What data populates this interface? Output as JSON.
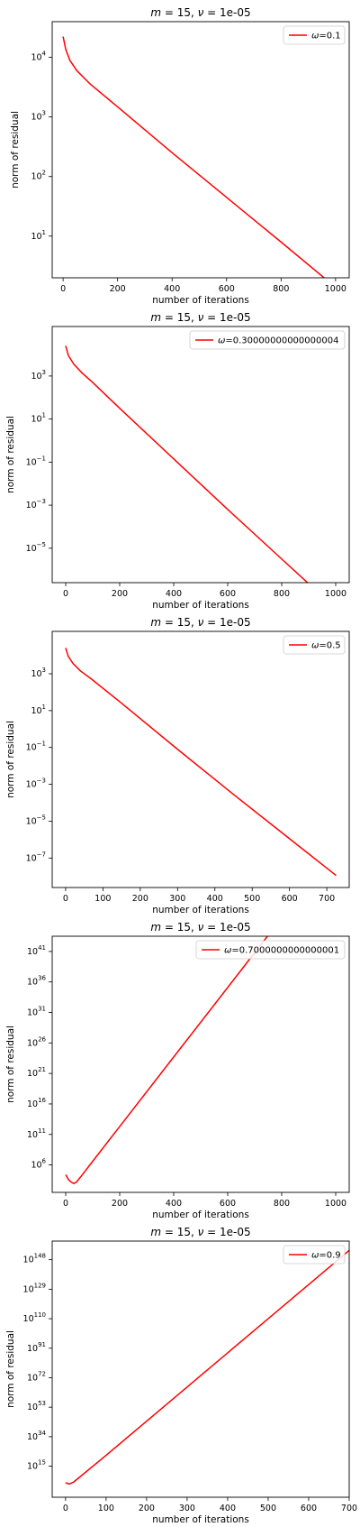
{
  "chart_data": [
    {
      "type": "line",
      "title": "m =  15, ν =  1e-05",
      "title_parts": {
        "m": "m",
        "eq1": " =  15, ",
        "nu": "ν",
        "eq2": " =  1e-05"
      },
      "xlabel": "number of iterations",
      "ylabel": "norm of residual",
      "yscale": "log",
      "xlim": [
        -40,
        1050
      ],
      "ylim_log10": [
        0.3,
        4.6
      ],
      "xticks": [
        0,
        200,
        400,
        600,
        800,
        1000
      ],
      "yticks": [
        {
          "base": "10",
          "exp": "1",
          "log": 1
        },
        {
          "base": "10",
          "exp": "2",
          "log": 2
        },
        {
          "base": "10",
          "exp": "3",
          "log": 3
        },
        {
          "base": "10",
          "exp": "4",
          "log": 4
        }
      ],
      "legend": {
        "position": "upper right",
        "prefix": "ω",
        "label": "=0.1"
      },
      "color": "#ff0000",
      "series": [
        {
          "name": "ω=0.1",
          "points": [
            [
              0,
              4.35
            ],
            [
              10,
              4.13
            ],
            [
              25,
              3.95
            ],
            [
              50,
              3.78
            ],
            [
              100,
              3.55
            ],
            [
              200,
              3.17
            ],
            [
              400,
              2.4
            ],
            [
              600,
              1.65
            ],
            [
              800,
              0.9
            ],
            [
              1000,
              0.14
            ]
          ]
        }
      ]
    },
    {
      "type": "line",
      "title": "m =  15, ν =  1e-05",
      "title_parts": {
        "m": "m",
        "eq1": " =  15, ",
        "nu": "ν",
        "eq2": " =  1e-05"
      },
      "xlabel": "number of iterations",
      "ylabel": "norm of residual",
      "yscale": "log",
      "xlim": [
        -50,
        1050
      ],
      "ylim_log10": [
        -6.6,
        5.3
      ],
      "xticks": [
        0,
        200,
        400,
        600,
        800,
        1000
      ],
      "yticks": [
        {
          "base": "10",
          "exp": "−5",
          "log": -5
        },
        {
          "base": "10",
          "exp": "−3",
          "log": -3
        },
        {
          "base": "10",
          "exp": "−1",
          "log": -1
        },
        {
          "base": "10",
          "exp": "1",
          "log": 1
        },
        {
          "base": "10",
          "exp": "3",
          "log": 3
        }
      ],
      "legend": {
        "position": "upper right",
        "prefix": "ω",
        "label": "=0.30000000000000004"
      },
      "color": "#ff0000",
      "series": [
        {
          "name": "ω=0.30000000000000004",
          "points": [
            [
              0,
              4.4
            ],
            [
              10,
              3.95
            ],
            [
              30,
              3.55
            ],
            [
              60,
              3.15
            ],
            [
              100,
              2.7
            ],
            [
              200,
              1.5
            ],
            [
              400,
              -0.85
            ],
            [
              600,
              -3.2
            ],
            [
              800,
              -5.5
            ],
            [
              1000,
              -7.8
            ]
          ]
        }
      ]
    },
    {
      "type": "line",
      "title": "m =  15, ν =  1e-05",
      "title_parts": {
        "m": "m",
        "eq1": " =  15, ",
        "nu": "ν",
        "eq2": " =  1e-05"
      },
      "xlabel": "number of iterations",
      "ylabel": "norm of residual",
      "yscale": "log",
      "xlim": [
        -36,
        760
      ],
      "ylim_log10": [
        -8.6,
        5.3
      ],
      "xticks": [
        0,
        100,
        200,
        300,
        400,
        500,
        600,
        700
      ],
      "yticks": [
        {
          "base": "10",
          "exp": "−7",
          "log": -7
        },
        {
          "base": "10",
          "exp": "−5",
          "log": -5
        },
        {
          "base": "10",
          "exp": "−3",
          "log": -3
        },
        {
          "base": "10",
          "exp": "−1",
          "log": -1
        },
        {
          "base": "10",
          "exp": "1",
          "log": 1
        },
        {
          "base": "10",
          "exp": "3",
          "log": 3
        }
      ],
      "legend": {
        "position": "upper right",
        "prefix": "ω",
        "label": "=0.5"
      },
      "color": "#ff0000",
      "series": [
        {
          "name": "ω=0.5",
          "points": [
            [
              0,
              4.4
            ],
            [
              7,
              3.95
            ],
            [
              20,
              3.55
            ],
            [
              40,
              3.15
            ],
            [
              70,
              2.7
            ],
            [
              150,
              1.4
            ],
            [
              300,
              -1.1
            ],
            [
              450,
              -3.55
            ],
            [
              600,
              -5.95
            ],
            [
              725,
              -7.95
            ]
          ]
        }
      ]
    },
    {
      "type": "line",
      "title": "m =  15, ν =  1e-05",
      "title_parts": {
        "m": "m",
        "eq1": " =  15, ",
        "nu": "ν",
        "eq2": " =  1e-05"
      },
      "xlabel": "number of iterations",
      "ylabel": "norm of residual",
      "yscale": "log",
      "xlim": [
        -50,
        1050
      ],
      "ylim_log10": [
        1.5,
        43.5
      ],
      "xticks": [
        0,
        200,
        400,
        600,
        800,
        1000
      ],
      "yticks": [
        {
          "base": "10",
          "exp": "6",
          "log": 6
        },
        {
          "base": "10",
          "exp": "11",
          "log": 11
        },
        {
          "base": "10",
          "exp": "16",
          "log": 16
        },
        {
          "base": "10",
          "exp": "21",
          "log": 21
        },
        {
          "base": "10",
          "exp": "26",
          "log": 26
        },
        {
          "base": "10",
          "exp": "31",
          "log": 31
        },
        {
          "base": "10",
          "exp": "36",
          "log": 36
        },
        {
          "base": "10",
          "exp": "41",
          "log": 41
        }
      ],
      "legend": {
        "position": "upper right",
        "prefix": "ω",
        "label": "=0.7000000000000001"
      },
      "color": "#ff0000",
      "series": [
        {
          "name": "ω=0.7000000000000001",
          "points": [
            [
              0,
              4.4
            ],
            [
              10,
              3.6
            ],
            [
              20,
              3.2
            ],
            [
              30,
              2.95
            ],
            [
              40,
              3.2
            ],
            [
              60,
              4.3
            ],
            [
              100,
              6.6
            ],
            [
              400,
              23.7
            ],
            [
              700,
              40.8
            ],
            [
              1000,
              57.9
            ]
          ]
        }
      ]
    },
    {
      "type": "line",
      "title": "m =  15, ν =  1e-05",
      "title_parts": {
        "m": "m",
        "eq1": " =  15, ",
        "nu": "ν",
        "eq2": " =  1e-05"
      },
      "xlabel": "number of iterations",
      "ylabel": "norm of residual",
      "yscale": "log",
      "xlim": [
        -33,
        700
      ],
      "ylim_log10": [
        -5,
        160
      ],
      "xticks": [
        0,
        100,
        200,
        300,
        400,
        500,
        600,
        700
      ],
      "yticks": [
        {
          "base": "10",
          "exp": "15",
          "log": 15
        },
        {
          "base": "10",
          "exp": "34",
          "log": 34
        },
        {
          "base": "10",
          "exp": "53",
          "log": 53
        },
        {
          "base": "10",
          "exp": "72",
          "log": 72
        },
        {
          "base": "10",
          "exp": "91",
          "log": 91
        },
        {
          "base": "10",
          "exp": "110",
          "log": 110
        },
        {
          "base": "10",
          "exp": "129",
          "log": 129
        },
        {
          "base": "10",
          "exp": "148",
          "log": 148
        }
      ],
      "legend": {
        "position": "upper right",
        "prefix": "ω",
        "label": "=0.9"
      },
      "color": "#ff0000",
      "series": [
        {
          "name": "ω=0.9",
          "points": [
            [
              0,
              4.4
            ],
            [
              5,
              3.8
            ],
            [
              10,
              3.6
            ],
            [
              20,
              4.8
            ],
            [
              100,
              22.0
            ],
            [
              300,
              66.0
            ],
            [
              500,
              110.0
            ],
            [
              700,
              154.0
            ]
          ]
        }
      ]
    }
  ]
}
